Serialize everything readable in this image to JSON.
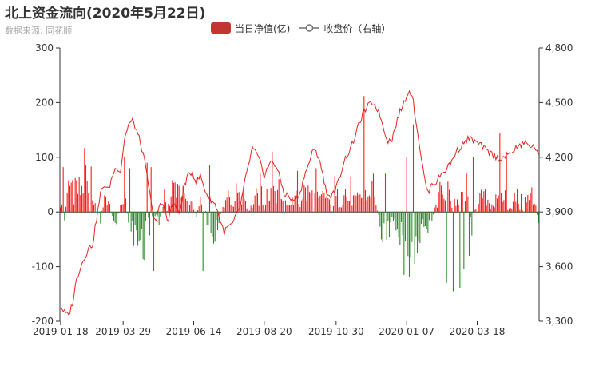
{
  "title": "北上资金流向(2020年5月22日)",
  "subtitle": "数据来源: 同花顺",
  "legend": {
    "bar_label": "当日净值(亿)",
    "line_label": "收盘价（右轴）"
  },
  "colors": {
    "positive": "#ff1a1a",
    "negative": "#2a8c2a",
    "line": "#e8211f",
    "legend_bar": "#c23531",
    "axis": "#333333"
  },
  "chart_data": {
    "type": "bar+line",
    "x_tick_labels": [
      "2019-01-18",
      "2019-03-29",
      "2019-06-14",
      "2019-08-20",
      "2019-10-30",
      "2020-01-07",
      "2020-03-18"
    ],
    "x_tick_index": [
      0,
      47,
      100,
      153,
      207,
      260,
      313
    ],
    "n_days": 360,
    "y_left": {
      "min": -200,
      "max": 300,
      "ticks": [
        -200,
        -100,
        0,
        100,
        200,
        300
      ]
    },
    "y_right": {
      "min": 3300,
      "max": 4800,
      "ticks": [
        "3,300",
        "3,600",
        "3,900",
        "4,200",
        "4,500",
        "4,800"
      ],
      "tick_values": [
        3300,
        3600,
        3900,
        4200,
        4500,
        4800
      ]
    },
    "bar_knots": [
      [
        0,
        30
      ],
      [
        3,
        -15
      ],
      [
        6,
        45
      ],
      [
        9,
        60
      ],
      [
        12,
        50
      ],
      [
        15,
        40
      ],
      [
        18,
        70
      ],
      [
        21,
        25
      ],
      [
        24,
        15
      ],
      [
        27,
        10
      ],
      [
        30,
        -20
      ],
      [
        33,
        40
      ],
      [
        36,
        15
      ],
      [
        39,
        -10
      ],
      [
        42,
        -15
      ],
      [
        45,
        5
      ],
      [
        48,
        30
      ],
      [
        51,
        -20
      ],
      [
        54,
        -40
      ],
      [
        57,
        -50
      ],
      [
        60,
        -60
      ],
      [
        63,
        -55
      ],
      [
        66,
        -30
      ],
      [
        69,
        -15
      ],
      [
        72,
        -10
      ],
      [
        75,
        -20
      ],
      [
        78,
        25
      ],
      [
        81,
        10
      ],
      [
        84,
        40
      ],
      [
        87,
        55
      ],
      [
        90,
        45
      ],
      [
        93,
        30
      ],
      [
        96,
        5
      ],
      [
        99,
        20
      ],
      [
        102,
        -10
      ],
      [
        105,
        15
      ],
      [
        108,
        5
      ],
      [
        111,
        -20
      ],
      [
        114,
        -40
      ],
      [
        117,
        -30
      ],
      [
        120,
        -10
      ],
      [
        123,
        10
      ],
      [
        126,
        30
      ],
      [
        129,
        25
      ],
      [
        132,
        40
      ],
      [
        135,
        60
      ],
      [
        138,
        30
      ],
      [
        141,
        5
      ],
      [
        144,
        15
      ],
      [
        147,
        45
      ],
      [
        150,
        40
      ],
      [
        153,
        10
      ],
      [
        156,
        30
      ],
      [
        159,
        50
      ],
      [
        162,
        40
      ],
      [
        165,
        20
      ],
      [
        168,
        10
      ],
      [
        171,
        15
      ],
      [
        174,
        20
      ],
      [
        177,
        25
      ],
      [
        180,
        20
      ],
      [
        183,
        35
      ],
      [
        186,
        40
      ],
      [
        189,
        30
      ],
      [
        192,
        20
      ],
      [
        195,
        25
      ],
      [
        198,
        30
      ],
      [
        201,
        20
      ],
      [
        204,
        15
      ],
      [
        207,
        25
      ],
      [
        210,
        35
      ],
      [
        213,
        40
      ],
      [
        216,
        30
      ],
      [
        219,
        25
      ],
      [
        222,
        20
      ],
      [
        225,
        30
      ],
      [
        228,
        25
      ],
      [
        231,
        30
      ],
      [
        234,
        40
      ],
      [
        237,
        20
      ],
      [
        240,
        -20
      ],
      [
        243,
        -60
      ],
      [
        246,
        -40
      ],
      [
        249,
        -20
      ],
      [
        252,
        -40
      ],
      [
        255,
        -70
      ],
      [
        258,
        -40
      ],
      [
        261,
        -90
      ],
      [
        264,
        -110
      ],
      [
        267,
        -80
      ],
      [
        270,
        -70
      ],
      [
        273,
        -50
      ],
      [
        276,
        -30
      ],
      [
        279,
        -20
      ],
      [
        282,
        20
      ],
      [
        285,
        40
      ],
      [
        288,
        30
      ],
      [
        291,
        35
      ],
      [
        294,
        25
      ],
      [
        297,
        20
      ],
      [
        300,
        15
      ],
      [
        303,
        30
      ],
      [
        306,
        20
      ],
      [
        309,
        -25
      ],
      [
        312,
        5
      ],
      [
        315,
        20
      ],
      [
        318,
        30
      ],
      [
        321,
        25
      ],
      [
        324,
        15
      ],
      [
        327,
        20
      ],
      [
        330,
        25
      ],
      [
        333,
        30
      ],
      [
        336,
        20
      ],
      [
        339,
        15
      ],
      [
        342,
        25
      ],
      [
        345,
        20
      ],
      [
        348,
        15
      ],
      [
        351,
        25
      ],
      [
        354,
        30
      ],
      [
        357,
        20
      ],
      [
        359,
        -30
      ]
    ],
    "bar_spikes": [
      [
        2,
        82
      ],
      [
        19,
        85
      ],
      [
        23,
        83
      ],
      [
        48,
        100
      ],
      [
        52,
        80
      ],
      [
        65,
        90
      ],
      [
        68,
        82
      ],
      [
        112,
        85
      ],
      [
        150,
        70
      ],
      [
        159,
        110
      ],
      [
        164,
        60
      ],
      [
        178,
        75
      ],
      [
        192,
        80
      ],
      [
        206,
        65
      ],
      [
        218,
        65
      ],
      [
        228,
        212
      ],
      [
        235,
        70
      ],
      [
        244,
        70
      ],
      [
        260,
        100
      ],
      [
        262,
        185
      ],
      [
        265,
        160
      ],
      [
        305,
        70
      ],
      [
        310,
        100
      ],
      [
        330,
        145
      ],
      [
        335,
        110
      ],
      [
        70,
        -108
      ],
      [
        107,
        -108
      ],
      [
        258,
        -115
      ],
      [
        262,
        -118
      ],
      [
        290,
        -130
      ],
      [
        295,
        -145
      ],
      [
        300,
        -140
      ],
      [
        303,
        -105
      ],
      [
        307,
        -80
      ]
    ],
    "line_knots": [
      [
        0,
        3380
      ],
      [
        3,
        3350
      ],
      [
        6,
        3330
      ],
      [
        9,
        3400
      ],
      [
        12,
        3530
      ],
      [
        15,
        3600
      ],
      [
        18,
        3650
      ],
      [
        21,
        3700
      ],
      [
        24,
        3720
      ],
      [
        27,
        3860
      ],
      [
        30,
        4000
      ],
      [
        33,
        4050
      ],
      [
        36,
        4020
      ],
      [
        39,
        4100
      ],
      [
        42,
        4150
      ],
      [
        45,
        4120
      ],
      [
        48,
        4300
      ],
      [
        51,
        4380
      ],
      [
        54,
        4400
      ],
      [
        57,
        4350
      ],
      [
        60,
        4280
      ],
      [
        63,
        4180
      ],
      [
        66,
        4050
      ],
      [
        69,
        3900
      ],
      [
        72,
        3850
      ],
      [
        75,
        3950
      ],
      [
        78,
        3920
      ],
      [
        81,
        3850
      ],
      [
        84,
        3950
      ],
      [
        87,
        3920
      ],
      [
        90,
        3900
      ],
      [
        93,
        4050
      ],
      [
        96,
        4100
      ],
      [
        99,
        4120
      ],
      [
        102,
        4060
      ],
      [
        105,
        4100
      ],
      [
        108,
        4030
      ],
      [
        111,
        3980
      ],
      [
        114,
        3960
      ],
      [
        117,
        3930
      ],
      [
        120,
        3850
      ],
      [
        123,
        3790
      ],
      [
        126,
        3820
      ],
      [
        129,
        3830
      ],
      [
        132,
        3880
      ],
      [
        135,
        3930
      ],
      [
        138,
        4050
      ],
      [
        141,
        4150
      ],
      [
        144,
        4250
      ],
      [
        147,
        4220
      ],
      [
        150,
        4170
      ],
      [
        153,
        4100
      ],
      [
        156,
        4150
      ],
      [
        159,
        4180
      ],
      [
        162,
        4150
      ],
      [
        165,
        4080
      ],
      [
        168,
        4000
      ],
      [
        171,
        3990
      ],
      [
        174,
        3960
      ],
      [
        177,
        3980
      ],
      [
        180,
        4000
      ],
      [
        183,
        4100
      ],
      [
        186,
        4150
      ],
      [
        189,
        4230
      ],
      [
        192,
        4230
      ],
      [
        195,
        4180
      ],
      [
        198,
        4060
      ],
      [
        201,
        3990
      ],
      [
        204,
        3990
      ],
      [
        207,
        4030
      ],
      [
        210,
        4100
      ],
      [
        213,
        4180
      ],
      [
        216,
        4220
      ],
      [
        219,
        4270
      ],
      [
        222,
        4330
      ],
      [
        225,
        4400
      ],
      [
        228,
        4450
      ],
      [
        231,
        4480
      ],
      [
        234,
        4500
      ],
      [
        237,
        4480
      ],
      [
        240,
        4430
      ],
      [
        243,
        4350
      ],
      [
        246,
        4290
      ],
      [
        249,
        4300
      ],
      [
        252,
        4380
      ],
      [
        255,
        4450
      ],
      [
        258,
        4500
      ],
      [
        261,
        4560
      ],
      [
        264,
        4550
      ],
      [
        267,
        4400
      ],
      [
        270,
        4250
      ],
      [
        273,
        4100
      ],
      [
        276,
        4000
      ],
      [
        279,
        4060
      ],
      [
        282,
        4060
      ],
      [
        285,
        4100
      ],
      [
        288,
        4120
      ],
      [
        291,
        4150
      ],
      [
        294,
        4180
      ],
      [
        297,
        4230
      ],
      [
        300,
        4250
      ],
      [
        303,
        4280
      ],
      [
        306,
        4300
      ],
      [
        309,
        4300
      ],
      [
        312,
        4280
      ],
      [
        315,
        4270
      ],
      [
        318,
        4250
      ],
      [
        321,
        4230
      ],
      [
        324,
        4220
      ],
      [
        327,
        4200
      ],
      [
        330,
        4190
      ],
      [
        333,
        4200
      ],
      [
        336,
        4210
      ],
      [
        339,
        4230
      ],
      [
        342,
        4250
      ],
      [
        345,
        4260
      ],
      [
        348,
        4280
      ],
      [
        351,
        4270
      ],
      [
        354,
        4260
      ],
      [
        357,
        4250
      ],
      [
        359,
        4200
      ]
    ]
  }
}
